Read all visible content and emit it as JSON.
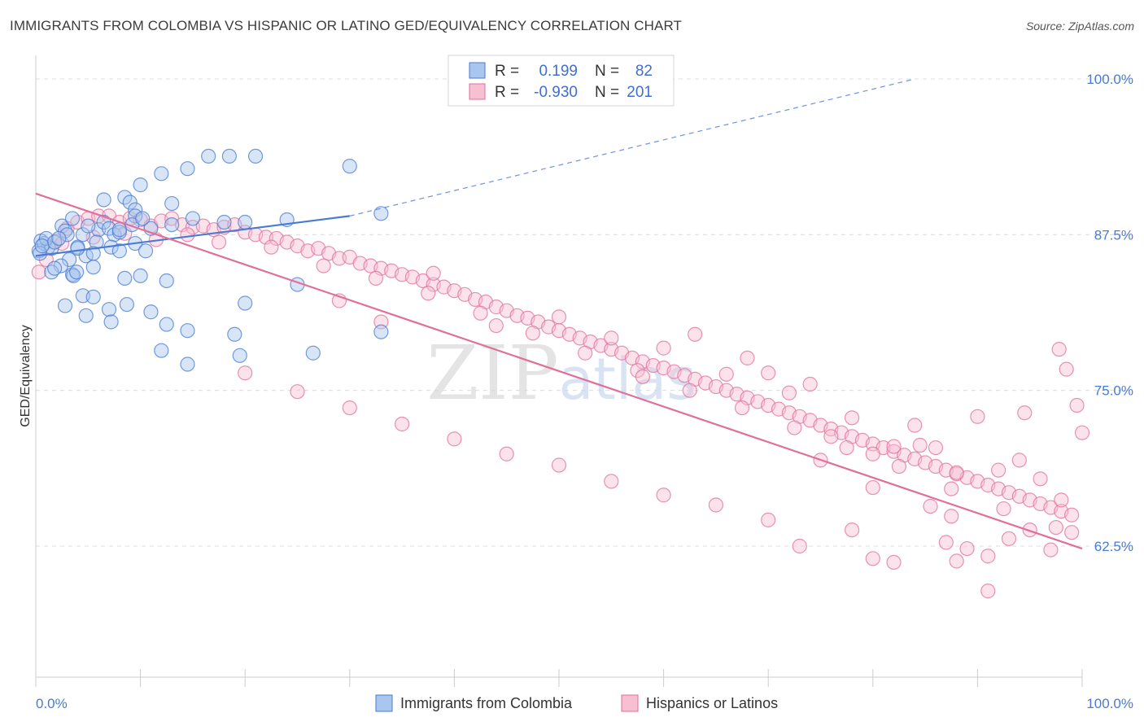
{
  "title": "IMMIGRANTS FROM COLOMBIA VS HISPANIC OR LATINO GED/EQUIVALENCY CORRELATION CHART",
  "source": "Source: ZipAtlas.com",
  "colors": {
    "blue": "#4a7bd0",
    "blue_fill": "#a9c6ee",
    "pink": "#e0709a",
    "pink_fill": "#f6bfd2",
    "grid": "#dcdcdc"
  },
  "legend": {
    "r_label": "R =",
    "n_label": "N =",
    "blue": {
      "r": "0.199",
      "n": "82"
    },
    "pink": {
      "r": "-0.930",
      "n": "201"
    }
  },
  "chart_data": {
    "type": "scatter",
    "ylabel": "GED/Equivalency",
    "xlim": [
      0,
      100
    ],
    "ylim": [
      50,
      100
    ],
    "ytick_labels": [
      "100.0%",
      "87.5%",
      "75.0%",
      "62.5%"
    ],
    "ytick_values": [
      100,
      87.5,
      75,
      62.5
    ],
    "xtick_labels": [
      "0.0%",
      "100.0%"
    ],
    "watermark": "ZIPatlas",
    "series": [
      {
        "name": "Immigrants from Colombia",
        "color": "#4a7bd0",
        "trend": {
          "x0": 0,
          "y0": 85.8,
          "x1": 30,
          "y1": 89.0,
          "dashed_to_x": 84,
          "dashed_to_y": 100
        },
        "points": [
          [
            0.5,
            87
          ],
          [
            1.2,
            86.5
          ],
          [
            0.3,
            86.2
          ],
          [
            0.8,
            86.8
          ],
          [
            1.5,
            86.4
          ],
          [
            0.4,
            86
          ],
          [
            1,
            87.2
          ],
          [
            0.6,
            86.6
          ],
          [
            1.8,
            86.9
          ],
          [
            2.5,
            88.2
          ],
          [
            3.5,
            88.8
          ],
          [
            2.8,
            87.8
          ],
          [
            4.5,
            87.5
          ],
          [
            6,
            87.9
          ],
          [
            6.5,
            88.5
          ],
          [
            5,
            88.2
          ],
          [
            7,
            88
          ],
          [
            7.5,
            87.5
          ],
          [
            3,
            87.5
          ],
          [
            2.2,
            87.2
          ],
          [
            4,
            86.5
          ],
          [
            5.8,
            86.9
          ],
          [
            7.2,
            86.5
          ],
          [
            8,
            86.2
          ],
          [
            9.5,
            86.8
          ],
          [
            10.5,
            86.2
          ],
          [
            4.8,
            85.8
          ],
          [
            3.2,
            85.5
          ],
          [
            2.4,
            85
          ],
          [
            1.5,
            84.5
          ],
          [
            1.8,
            84.8
          ],
          [
            3.5,
            84.3
          ],
          [
            5.5,
            84.9
          ],
          [
            3.6,
            84.2
          ],
          [
            3.9,
            84.5
          ],
          [
            8.5,
            84
          ],
          [
            10,
            84.2
          ],
          [
            12.5,
            83.8
          ],
          [
            16.5,
            93.8
          ],
          [
            18.5,
            93.8
          ],
          [
            21,
            93.8
          ],
          [
            14.5,
            92.8
          ],
          [
            12,
            92.4
          ],
          [
            10,
            91.5
          ],
          [
            8.5,
            90.5
          ],
          [
            9,
            90.1
          ],
          [
            13,
            90
          ],
          [
            9.5,
            89.5
          ],
          [
            6.5,
            90.3
          ],
          [
            9.5,
            89
          ],
          [
            15,
            88.8
          ],
          [
            24,
            88.7
          ],
          [
            30,
            93
          ],
          [
            33,
            89.2
          ],
          [
            18,
            88.5
          ],
          [
            20,
            88.5
          ],
          [
            13,
            88.3
          ],
          [
            11,
            88
          ],
          [
            8,
            87.7
          ],
          [
            9.2,
            88.3
          ],
          [
            10.2,
            88.8
          ],
          [
            25,
            83.5
          ],
          [
            20,
            82
          ],
          [
            4.5,
            82.6
          ],
          [
            5.5,
            82.5
          ],
          [
            8.7,
            81.9
          ],
          [
            7,
            81.5
          ],
          [
            2.8,
            81.8
          ],
          [
            7.2,
            80.5
          ],
          [
            11,
            81.3
          ],
          [
            4.8,
            81
          ],
          [
            12.5,
            80.3
          ],
          [
            14.5,
            79.8
          ],
          [
            19,
            79.5
          ],
          [
            12,
            78.2
          ],
          [
            14.5,
            77.1
          ],
          [
            26.5,
            78
          ],
          [
            33,
            79.7
          ],
          [
            19.5,
            77.8
          ],
          [
            8,
            87.9
          ],
          [
            4,
            86.4
          ],
          [
            5.5,
            86
          ]
        ]
      },
      {
        "name": "Hispanics or Latinos",
        "color": "#e0709a",
        "trend": {
          "x0": 0,
          "y0": 90.8,
          "x1": 100,
          "y1": 62.3
        },
        "points": [
          [
            0.3,
            84.5
          ],
          [
            2,
            87
          ],
          [
            3,
            88
          ],
          [
            4,
            88.5
          ],
          [
            5,
            88.8
          ],
          [
            6,
            89
          ],
          [
            7,
            89
          ],
          [
            8,
            88.5
          ],
          [
            9,
            88.8
          ],
          [
            10,
            88.7
          ],
          [
            11,
            88.2
          ],
          [
            12,
            88.6
          ],
          [
            13,
            88.8
          ],
          [
            14,
            88.3
          ],
          [
            15,
            88.1
          ],
          [
            16,
            88.2
          ],
          [
            17,
            87.9
          ],
          [
            18,
            88.1
          ],
          [
            19,
            88.3
          ],
          [
            20,
            87.7
          ],
          [
            21,
            87.5
          ],
          [
            22,
            87.3
          ],
          [
            23,
            87.2
          ],
          [
            24,
            86.9
          ],
          [
            25,
            86.6
          ],
          [
            26,
            86.2
          ],
          [
            27,
            86.4
          ],
          [
            28,
            86
          ],
          [
            29,
            85.6
          ],
          [
            30,
            85.7
          ],
          [
            31,
            85.2
          ],
          [
            32,
            85
          ],
          [
            33,
            84.8
          ],
          [
            34,
            84.6
          ],
          [
            35,
            84.3
          ],
          [
            36,
            84.1
          ],
          [
            37,
            83.8
          ],
          [
            38,
            83.5
          ],
          [
            39,
            83.3
          ],
          [
            40,
            83
          ],
          [
            41,
            82.7
          ],
          [
            42,
            82.3
          ],
          [
            43,
            82.1
          ],
          [
            44,
            81.7
          ],
          [
            45,
            81.4
          ],
          [
            46,
            81
          ],
          [
            47,
            80.8
          ],
          [
            48,
            80.5
          ],
          [
            49,
            80.1
          ],
          [
            50,
            79.8
          ],
          [
            51,
            79.5
          ],
          [
            52,
            79.2
          ],
          [
            53,
            78.9
          ],
          [
            54,
            78.6
          ],
          [
            55,
            78.3
          ],
          [
            56,
            78
          ],
          [
            57,
            77.6
          ],
          [
            58,
            77.3
          ],
          [
            59,
            77
          ],
          [
            60,
            76.8
          ],
          [
            61,
            76.5
          ],
          [
            62,
            76.2
          ],
          [
            63,
            75.9
          ],
          [
            64,
            75.6
          ],
          [
            65,
            75.3
          ],
          [
            66,
            75
          ],
          [
            67,
            74.7
          ],
          [
            68,
            74.4
          ],
          [
            69,
            74.1
          ],
          [
            70,
            73.8
          ],
          [
            71,
            73.5
          ],
          [
            72,
            73.2
          ],
          [
            73,
            72.9
          ],
          [
            74,
            72.6
          ],
          [
            75,
            72.2
          ],
          [
            76,
            71.9
          ],
          [
            77,
            71.6
          ],
          [
            78,
            71.3
          ],
          [
            79,
            71
          ],
          [
            80,
            70.7
          ],
          [
            81,
            70.4
          ],
          [
            82,
            70.1
          ],
          [
            83,
            69.8
          ],
          [
            84,
            69.5
          ],
          [
            85,
            69.2
          ],
          [
            86,
            68.9
          ],
          [
            87,
            68.6
          ],
          [
            88,
            68.3
          ],
          [
            89,
            68
          ],
          [
            90,
            67.7
          ],
          [
            91,
            67.4
          ],
          [
            92,
            67.1
          ],
          [
            93,
            66.8
          ],
          [
            94,
            66.5
          ],
          [
            95,
            66.2
          ],
          [
            96,
            65.9
          ],
          [
            97,
            65.6
          ],
          [
            98,
            65.3
          ],
          [
            99,
            65
          ],
          [
            1,
            85.5
          ],
          [
            2.5,
            86.8
          ],
          [
            5.5,
            87.3
          ],
          [
            8.5,
            87.6
          ],
          [
            11.5,
            87.1
          ],
          [
            14.5,
            87.5
          ],
          [
            17.5,
            86.9
          ],
          [
            22.5,
            86.5
          ],
          [
            27.5,
            85
          ],
          [
            32.5,
            84
          ],
          [
            37.5,
            82.8
          ],
          [
            42.5,
            81.2
          ],
          [
            47.5,
            79.6
          ],
          [
            52.5,
            78
          ],
          [
            57.5,
            76.6
          ],
          [
            62.5,
            75
          ],
          [
            67.5,
            73.6
          ],
          [
            72.5,
            72
          ],
          [
            77.5,
            70.4
          ],
          [
            82.5,
            68.9
          ],
          [
            87.5,
            67.1
          ],
          [
            92.5,
            65.5
          ],
          [
            97.5,
            64
          ],
          [
            29,
            82.2
          ],
          [
            33,
            80.5
          ],
          [
            38,
            84.4
          ],
          [
            44,
            80.2
          ],
          [
            50,
            80.9
          ],
          [
            55,
            79.2
          ],
          [
            58,
            76.1
          ],
          [
            60,
            78.4
          ],
          [
            63,
            79.5
          ],
          [
            66,
            76.3
          ],
          [
            68,
            77.6
          ],
          [
            70,
            76.4
          ],
          [
            72,
            74.8
          ],
          [
            74,
            75.5
          ],
          [
            76,
            71.3
          ],
          [
            78,
            72.8
          ],
          [
            80,
            69.9
          ],
          [
            82,
            70.5
          ],
          [
            84,
            72.2
          ],
          [
            86,
            70.4
          ],
          [
            88,
            68.4
          ],
          [
            90,
            72.9
          ],
          [
            92,
            68.6
          ],
          [
            94,
            69.4
          ],
          [
            96,
            67.9
          ],
          [
            98,
            66.2
          ],
          [
            100,
            71.6
          ],
          [
            99.5,
            73.8
          ],
          [
            98.5,
            76.7
          ],
          [
            97.8,
            78.3
          ],
          [
            94.5,
            73.2
          ],
          [
            84.5,
            70.6
          ],
          [
            75,
            69.4
          ],
          [
            80,
            67.2
          ],
          [
            85.5,
            65.7
          ],
          [
            87.5,
            64.9
          ],
          [
            89,
            62.3
          ],
          [
            91,
            61.7
          ],
          [
            93,
            63.1
          ],
          [
            95,
            63.8
          ],
          [
            97,
            62.2
          ],
          [
            99,
            63.6
          ],
          [
            78,
            63.8
          ],
          [
            82,
            61.2
          ],
          [
            88,
            61.3
          ],
          [
            91,
            58.9
          ],
          [
            87,
            62.8
          ],
          [
            80,
            61.5
          ],
          [
            73,
            62.5
          ],
          [
            70,
            64.6
          ],
          [
            65,
            65.8
          ],
          [
            60,
            66.6
          ],
          [
            55,
            67.7
          ],
          [
            50,
            69
          ],
          [
            45,
            69.9
          ],
          [
            40,
            71.1
          ],
          [
            35,
            72.3
          ],
          [
            30,
            73.6
          ],
          [
            25,
            74.9
          ],
          [
            20,
            76.4
          ]
        ]
      }
    ]
  },
  "bottom_legend": [
    "Immigrants from Colombia",
    "Hispanics or Latinos"
  ]
}
